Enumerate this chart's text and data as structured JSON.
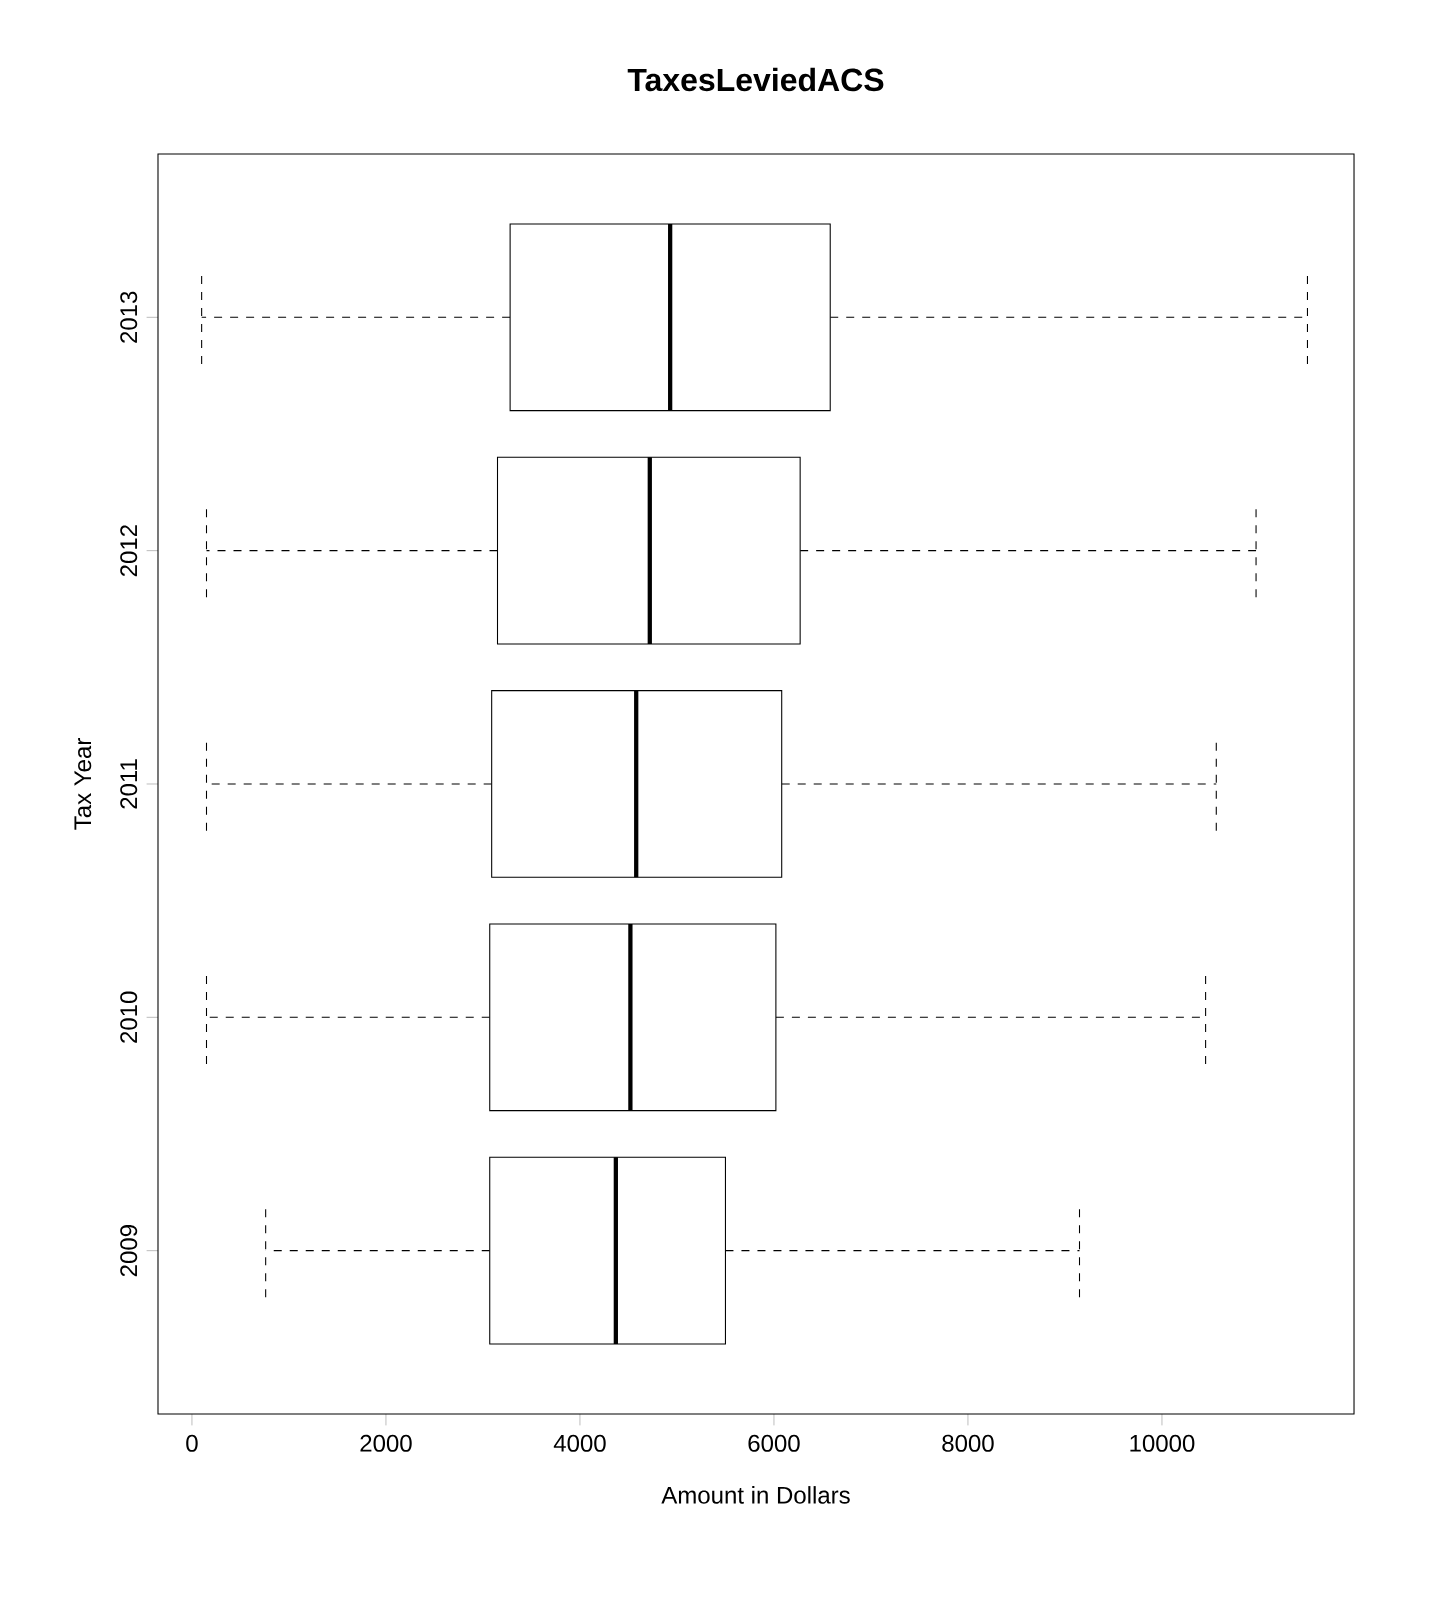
{
  "chart_data": {
    "type": "box",
    "orientation": "horizontal",
    "title": "TaxesLeviedACS",
    "xlabel": "Amount in Dollars",
    "ylabel": "Tax Year",
    "categories": [
      "2013",
      "2012",
      "2011",
      "2010",
      "2009"
    ],
    "boxes": [
      {
        "low": 100,
        "q1": 3280,
        "median": 4930,
        "q3": 6580,
        "high": 11500
      },
      {
        "low": 150,
        "q1": 3150,
        "median": 4720,
        "q3": 6270,
        "high": 10970
      },
      {
        "low": 150,
        "q1": 3090,
        "median": 4580,
        "q3": 6080,
        "high": 10560
      },
      {
        "low": 150,
        "q1": 3070,
        "median": 4520,
        "q3": 6020,
        "high": 10450
      },
      {
        "low": 760,
        "q1": 3070,
        "median": 4370,
        "q3": 5500,
        "high": 9150
      }
    ],
    "xlim": [
      -350,
      11980
    ],
    "xticks": [
      0,
      2000,
      4000,
      6000,
      8000,
      10000
    ],
    "grid": false
  }
}
